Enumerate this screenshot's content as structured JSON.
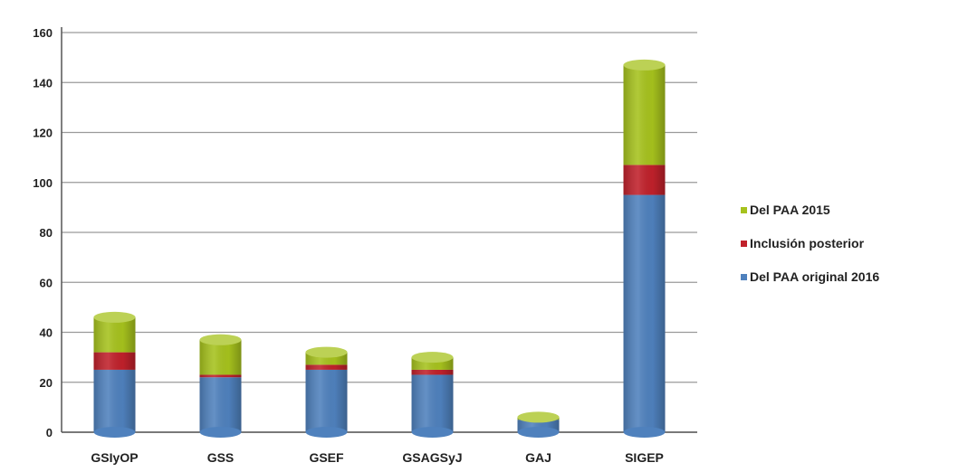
{
  "chart_data": {
    "type": "bar",
    "stacked": true,
    "categories": [
      "GSIyOP",
      "GSS",
      "GSEF",
      "GSAGSyJ",
      "GAJ",
      "SIGEP"
    ],
    "series": [
      {
        "name": "Del PAA original 2016",
        "color": "#4f81bd",
        "values": [
          25,
          22,
          25,
          23,
          5,
          95
        ]
      },
      {
        "name": "Inclusión posterior",
        "color": "#c0212b",
        "values": [
          7,
          1,
          2,
          2,
          0,
          12
        ]
      },
      {
        "name": "Del PAA 2015",
        "color": "#a6c21d",
        "values": [
          14,
          14,
          5,
          5,
          1,
          40
        ]
      }
    ],
    "legend_order": [
      2,
      1,
      0
    ],
    "legend_labels": [
      "Del PAA 2015",
      "Inclusión posterior",
      "Del PAA original 2016"
    ],
    "ylim": [
      0,
      160
    ],
    "yticks": [
      "0",
      "20",
      "40",
      "60",
      "80",
      "100",
      "120",
      "140",
      "160"
    ],
    "grid": true,
    "legend_position": "right",
    "title": "",
    "xlabel": "",
    "ylabel": ""
  }
}
